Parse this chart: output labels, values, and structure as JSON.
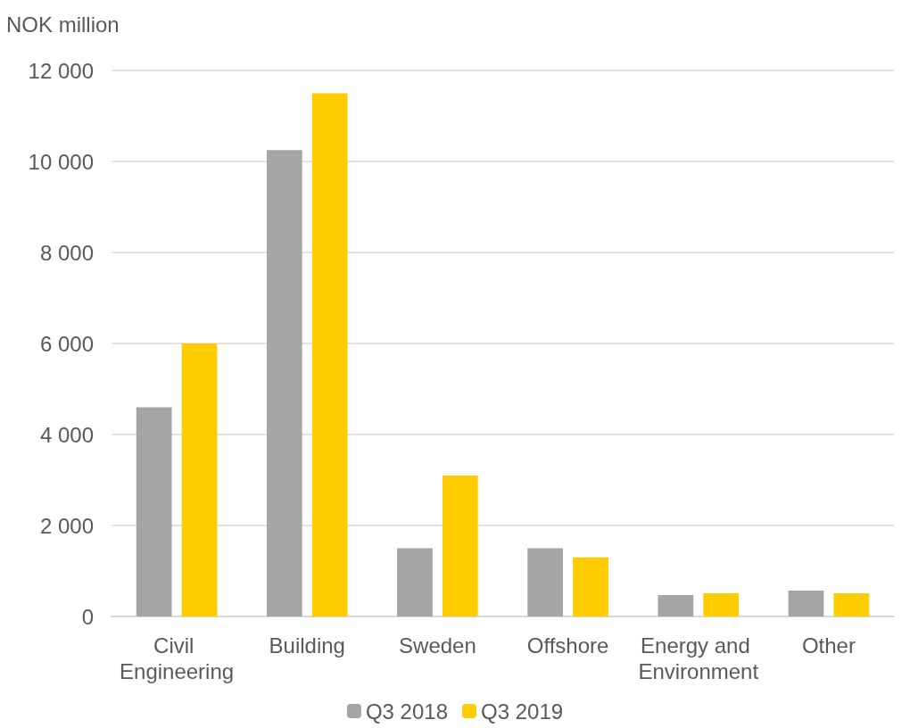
{
  "chart_data": {
    "type": "bar",
    "ylabel": "NOK million",
    "categories": [
      "Civil Engineering",
      "Building",
      "Sweden",
      "Offshore",
      "Energy and Environment",
      "Other"
    ],
    "series": [
      {
        "name": "Q3 2018",
        "color": "#a5a5a5",
        "values": [
          4600,
          10250,
          1500,
          1500,
          470,
          570
        ]
      },
      {
        "name": "Q3 2019",
        "color": "#ffcc00",
        "values": [
          6000,
          11500,
          3100,
          1300,
          510,
          510
        ]
      }
    ],
    "ylim": [
      0,
      12000
    ],
    "yticks": [
      {
        "value": 0,
        "label": "0"
      },
      {
        "value": 2000,
        "label": "2 000"
      },
      {
        "value": 4000,
        "label": "4 000"
      },
      {
        "value": 6000,
        "label": "6 000"
      },
      {
        "value": 8000,
        "label": "8 000"
      },
      {
        "value": 10000,
        "label": "10 000"
      },
      {
        "value": 12000,
        "label": "12 000"
      }
    ],
    "grid": "y",
    "legend": "bottom"
  }
}
